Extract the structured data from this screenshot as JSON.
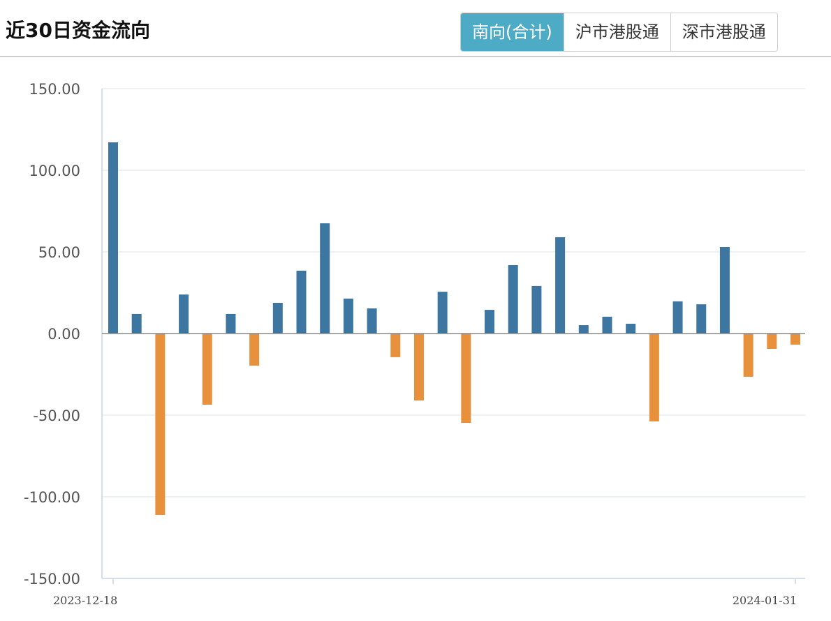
{
  "header": {
    "title": "近30日资金流向",
    "tabs": [
      {
        "label": "南向(合计)",
        "active": true
      },
      {
        "label": "沪市港股通",
        "active": false
      },
      {
        "label": "深市港股通",
        "active": false
      }
    ]
  },
  "colors": {
    "positive": "#3d76a0",
    "negative": "#e8913c",
    "active_tab": "#4eabc6"
  },
  "chart_data": {
    "type": "bar",
    "title": "",
    "ylim": [
      -150,
      150
    ],
    "yticks": [
      "150.00",
      "100.00",
      "50.00",
      "0.00",
      "-50.00",
      "-100.00",
      "-150.00"
    ],
    "ytick_values": [
      150,
      100,
      50,
      0,
      -50,
      -100,
      -150
    ],
    "xtick_labels": [
      "2023-12-18",
      "2024-01-31"
    ],
    "grid": true,
    "values": [
      117.1,
      12.0,
      -111.1,
      23.9,
      -43.6,
      12.0,
      -19.7,
      18.8,
      38.5,
      67.5,
      21.4,
      15.4,
      -14.5,
      -41.0,
      25.6,
      -54.7,
      14.5,
      41.9,
      29.1,
      59.0,
      5.1,
      10.3,
      6.0,
      -53.8,
      19.7,
      17.9,
      53.0,
      -26.5,
      -9.4,
      -6.8
    ]
  }
}
